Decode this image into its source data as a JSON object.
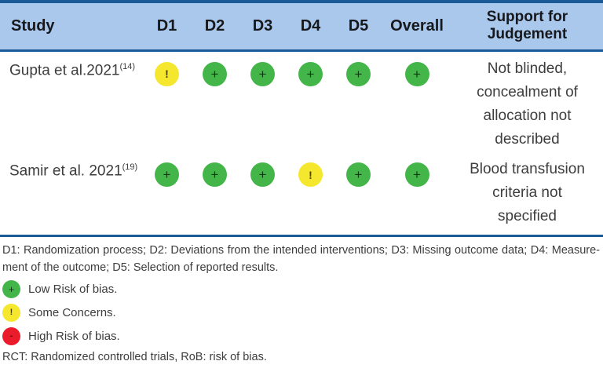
{
  "table": {
    "columns": [
      "Study",
      "D1",
      "D2",
      "D3",
      "D4",
      "D5",
      "Overall",
      "Support for Judgement"
    ],
    "rows": [
      {
        "study": "Gupta et al.2021",
        "study_ref": "(14)",
        "ratings": [
          "some-concerns",
          "low",
          "low",
          "low",
          "low",
          "low"
        ],
        "symbols": [
          "!",
          "+",
          "+",
          "+",
          "+",
          "+"
        ],
        "support": "Not blinded, concealment of allocation not described"
      },
      {
        "study": "Samir et al. 2021",
        "study_ref": "(19)",
        "ratings": [
          "low",
          "low",
          "low",
          "some-concerns",
          "low",
          "low"
        ],
        "symbols": [
          "+",
          "+",
          "+",
          "!",
          "+",
          "+"
        ],
        "support": "Blood transfusion criteria not specified"
      }
    ]
  },
  "footnotes": {
    "line1": "D1: Randomization process; D2: Deviations from the intended interventions; D3: Missing outcome data; D4: Measure-",
    "line2": "ment of the outcome; D5: Selection of reported results.",
    "abbrev": "RCT: Randomized controlled trials, RoB: risk of bias."
  },
  "legend": [
    {
      "type": "low",
      "symbol": "+",
      "label": "Low Risk of bias."
    },
    {
      "type": "some-concerns",
      "symbol": "!",
      "label": "Some Concerns."
    },
    {
      "type": "high",
      "symbol": "-",
      "label": "High Risk of bias."
    }
  ],
  "colors": {
    "low_risk": "#43b549",
    "some_concerns": "#f4e72e",
    "high_risk": "#ea1c2c",
    "header_background": "#a9c8ec",
    "table_border": "#1b5a99",
    "body_text": "#3d3d3d"
  }
}
